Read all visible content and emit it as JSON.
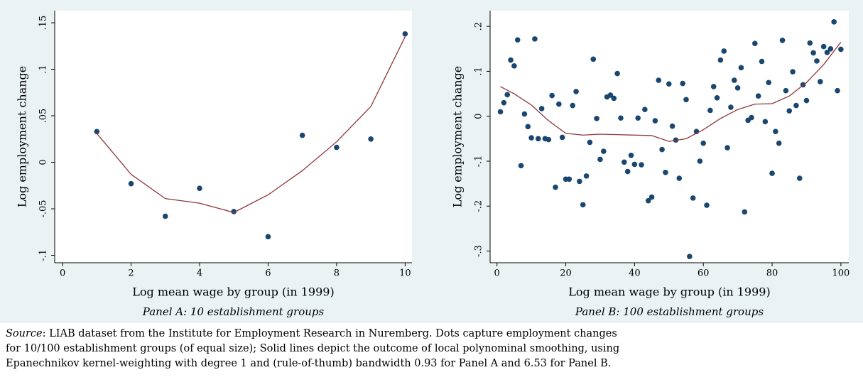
{
  "chart_data": [
    {
      "type": "scatter",
      "caption": "Panel A: 10 establishment groups",
      "x_label": "Log mean wage by group (in 1999)",
      "y_label": "Log employment change",
      "xlim": [
        -0.23,
        10.2
      ],
      "ylim": [
        -0.108,
        0.163
      ],
      "xticks": [
        0,
        2,
        4,
        6,
        8,
        10
      ],
      "yticks": [
        {
          "value": -0.1,
          "label": "-.1"
        },
        {
          "value": -0.05,
          "label": "-.05"
        },
        0,
        {
          "value": 0.05,
          "label": ".05"
        },
        {
          "value": 0.1,
          "label": ".1"
        },
        {
          "value": 0.15,
          "label": ".15"
        }
      ],
      "grid": false,
      "series": [
        {
          "kind": "scatter",
          "color": "#1a476f",
          "x": [
            1,
            2,
            3,
            4,
            5,
            6,
            7,
            8,
            9,
            10
          ],
          "values": [
            0.033,
            -0.023,
            -0.058,
            -0.028,
            -0.053,
            -0.08,
            0.029,
            0.016,
            0.025,
            0.138
          ]
        },
        {
          "kind": "line",
          "color": "#90353b",
          "x": [
            1,
            2,
            3,
            4,
            5,
            6,
            7,
            8,
            9,
            10
          ],
          "values": [
            0.031,
            -0.013,
            -0.039,
            -0.044,
            -0.054,
            -0.035,
            -0.009,
            0.022,
            0.06,
            0.135
          ]
        }
      ]
    },
    {
      "type": "scatter",
      "caption": "Panel B: 100 establishment groups",
      "x_label": "Log mean wage by group (in 1999)",
      "y_label": "Log employment change",
      "xlim": [
        -2,
        102.3
      ],
      "ylim": [
        -0.326,
        0.235
      ],
      "xticks": [
        0,
        20,
        40,
        60,
        80,
        100
      ],
      "yticks": [
        {
          "value": -0.3,
          "label": "-.3"
        },
        {
          "value": -0.2,
          "label": "-.2"
        },
        {
          "value": -0.1,
          "label": "-.1"
        },
        0,
        {
          "value": 0.1,
          "label": ".1"
        },
        {
          "value": 0.2,
          "label": ".2"
        }
      ],
      "grid": false,
      "series": [
        {
          "kind": "scatter",
          "color": "#1a476f",
          "x": [
            1,
            2,
            3,
            4,
            5,
            6,
            7,
            8,
            9,
            10,
            11,
            12,
            13,
            14,
            15,
            16,
            17,
            18,
            19,
            20,
            21,
            22,
            23,
            24,
            25,
            26,
            27,
            28,
            29,
            30,
            31,
            32,
            33,
            34,
            35,
            36,
            37,
            38,
            39,
            40,
            41,
            42,
            43,
            44,
            45,
            46,
            47,
            48,
            49,
            50,
            51,
            52,
            53,
            54,
            55,
            56,
            57,
            58,
            59,
            60,
            61,
            62,
            63,
            64,
            65,
            66,
            67,
            68,
            69,
            70,
            71,
            72,
            73,
            74,
            75,
            76,
            77,
            78,
            79,
            80,
            81,
            82,
            83,
            84,
            85,
            86,
            87,
            88,
            89,
            90,
            91,
            92,
            93,
            94,
            95,
            96,
            97,
            98,
            99,
            100
          ],
          "values": [
            0.01,
            0.03,
            0.048,
            0.125,
            0.112,
            0.17,
            -0.11,
            0.005,
            -0.023,
            -0.048,
            0.172,
            -0.05,
            0.017,
            -0.05,
            -0.052,
            0.046,
            -0.158,
            0.027,
            -0.047,
            -0.14,
            -0.14,
            0.024,
            0.055,
            -0.145,
            -0.197,
            -0.133,
            -0.058,
            0.127,
            -0.005,
            -0.096,
            -0.078,
            0.043,
            0.047,
            0.04,
            0.095,
            -0.004,
            -0.102,
            -0.123,
            -0.087,
            -0.107,
            -0.004,
            -0.108,
            0.015,
            -0.188,
            -0.18,
            -0.01,
            0.08,
            -0.074,
            -0.125,
            0.072,
            -0.022,
            -0.053,
            -0.138,
            0.073,
            0.037,
            -0.312,
            -0.182,
            -0.034,
            -0.1,
            -0.06,
            -0.198,
            0.013,
            0.066,
            0.041,
            0.125,
            0.145,
            -0.07,
            0.02,
            0.08,
            0.063,
            0.108,
            -0.213,
            -0.009,
            -0.003,
            0.162,
            0.045,
            0.122,
            -0.012,
            0.075,
            -0.127,
            -0.034,
            -0.06,
            0.169,
            0.057,
            0.012,
            0.099,
            0.024,
            -0.138,
            0.07,
            0.035,
            0.163,
            0.141,
            0.123,
            0.077,
            0.155,
            0.142,
            0.15,
            0.21,
            0.057,
            0.149
          ]
        },
        {
          "kind": "line",
          "color": "#90353b",
          "x": [
            1,
            5,
            10,
            15,
            20,
            25,
            30,
            35,
            40,
            45,
            50,
            55,
            60,
            65,
            70,
            75,
            80,
            85,
            90,
            95,
            100
          ],
          "values": [
            0.066,
            0.05,
            0.025,
            -0.01,
            -0.038,
            -0.042,
            -0.04,
            -0.041,
            -0.042,
            -0.043,
            -0.056,
            -0.05,
            -0.03,
            -0.005,
            0.015,
            0.027,
            0.028,
            0.045,
            0.075,
            0.115,
            0.165
          ]
        }
      ]
    }
  ],
  "note": {
    "label": "Source",
    "lines": [
      ": LIAB dataset from the Institute for Employment Research in Nuremberg. Dots capture employment changes",
      "for 10/100 establishment groups (of equal size); Solid lines depict the outcome of local polynominal smoothing, using",
      "Epanechnikov kernel-weighting with degree 1 and (rule-of-thumb) bandwidth 0.93 for Panel A and 6.53 for Panel B."
    ]
  }
}
